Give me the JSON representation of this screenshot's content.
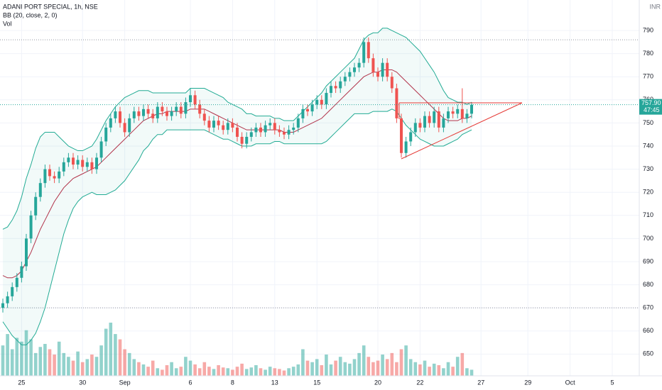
{
  "chart_data": {
    "type": "candlestick",
    "title": "ADANI PORT SPECIAL, 1h, NSE",
    "indicator": "BB (20, close, 2, 0)",
    "volume_label": "Vol",
    "currency": "INR",
    "last_price_label": "757.90",
    "countdown": "47:45",
    "up_color": "#26a69a",
    "down_color": "#ef5350",
    "band_color": "#22ab94",
    "basis_color": "#b2344b",
    "ylim": [
      640.6,
      803.2
    ],
    "yticks": [
      650,
      660,
      670,
      680,
      690,
      700,
      710,
      720,
      730,
      740,
      750,
      760,
      770,
      780,
      790
    ],
    "grid": true,
    "price_lines": [
      786,
      670
    ],
    "categories": [
      null,
      null,
      null,
      null,
      "25",
      null,
      null,
      null,
      null,
      null,
      null,
      null,
      null,
      null,
      null,
      null,
      null,
      "30",
      null,
      null,
      null,
      null,
      null,
      null,
      null,
      null,
      "Sep",
      null,
      null,
      null,
      null,
      null,
      null,
      null,
      null,
      null,
      null,
      null,
      null,
      null,
      "6",
      null,
      null,
      null,
      null,
      null,
      null,
      null,
      null,
      "8",
      null,
      null,
      null,
      null,
      null,
      null,
      null,
      null,
      "13",
      null,
      null,
      null,
      null,
      null,
      null,
      null,
      null,
      "15",
      null,
      null,
      null,
      null,
      null,
      null,
      null,
      null,
      null,
      null,
      null,
      null,
      "20",
      null,
      null,
      null,
      null,
      null,
      null,
      null,
      null,
      "22",
      null,
      null,
      null,
      null,
      null,
      null,
      null,
      null,
      null,
      null,
      null,
      null,
      "27",
      null,
      null,
      null,
      null,
      null,
      null,
      null,
      null,
      null,
      "29",
      null,
      null,
      null,
      null,
      null,
      null,
      null,
      null,
      "Oct",
      null,
      null,
      null,
      null,
      null,
      null,
      null,
      null,
      "5"
    ],
    "open": [
      670,
      672,
      675,
      679,
      683,
      688,
      700,
      710,
      718,
      724,
      730,
      727,
      726,
      729,
      733,
      735,
      732,
      734,
      731,
      733,
      730,
      735,
      742,
      748,
      752,
      755,
      750,
      746,
      752,
      755,
      753,
      756,
      754,
      752,
      757,
      755,
      753,
      755,
      757,
      754,
      759,
      762,
      758,
      754,
      751,
      748,
      751,
      749,
      747,
      750,
      748,
      744,
      741,
      744,
      746,
      748,
      746,
      749,
      750,
      747,
      746,
      745,
      747,
      748,
      752,
      756,
      755,
      758,
      760,
      758,
      763,
      766,
      765,
      768,
      770,
      772,
      774,
      776,
      785,
      778,
      772,
      770,
      776,
      770,
      765,
      752,
      737,
      742,
      746,
      750,
      748,
      753,
      750,
      755,
      748,
      752,
      755,
      754,
      756,
      752,
      754,
      null,
      null,
      null,
      null,
      null,
      null,
      null,
      null,
      null,
      null,
      null,
      null,
      null,
      null,
      null,
      null,
      null,
      null,
      null,
      null,
      null,
      null,
      null,
      null,
      null,
      null,
      null,
      null,
      null,
      null
    ],
    "high": [
      674,
      677,
      681,
      685,
      690,
      702,
      712,
      720,
      726,
      732,
      732,
      729,
      731,
      735,
      737,
      737,
      736,
      736,
      735,
      735,
      737,
      744,
      750,
      754,
      757,
      757,
      752,
      754,
      757,
      757,
      758,
      758,
      756,
      759,
      759,
      757,
      757,
      759,
      759,
      761,
      765,
      764,
      760,
      756,
      753,
      753,
      753,
      751,
      752,
      752,
      750,
      746,
      746,
      748,
      750,
      750,
      751,
      752,
      752,
      749,
      748,
      749,
      750,
      754,
      758,
      758,
      760,
      762,
      762,
      765,
      768,
      768,
      770,
      772,
      774,
      776,
      778,
      787,
      787,
      780,
      774,
      778,
      778,
      772,
      767,
      754,
      744,
      748,
      752,
      752,
      755,
      755,
      757,
      757,
      754,
      757,
      757,
      758,
      765,
      756,
      759,
      null,
      null,
      null,
      null,
      null,
      null,
      null,
      null,
      null,
      null,
      null,
      null,
      null,
      null,
      null,
      null,
      null,
      null,
      null,
      null,
      null,
      null,
      null,
      null,
      null,
      null,
      null,
      null,
      null,
      null
    ],
    "low": [
      668,
      670,
      673,
      677,
      681,
      686,
      698,
      708,
      716,
      722,
      725,
      724,
      724,
      727,
      731,
      730,
      730,
      729,
      729,
      728,
      728,
      733,
      740,
      746,
      750,
      748,
      744,
      744,
      750,
      751,
      751,
      752,
      750,
      750,
      753,
      751,
      751,
      753,
      752,
      752,
      757,
      756,
      752,
      749,
      746,
      746,
      747,
      745,
      745,
      746,
      742,
      739,
      739,
      742,
      744,
      744,
      744,
      747,
      745,
      744,
      743,
      743,
      745,
      746,
      750,
      753,
      753,
      756,
      756,
      756,
      761,
      763,
      763,
      766,
      768,
      770,
      772,
      774,
      776,
      770,
      768,
      768,
      768,
      763,
      750,
      735,
      735,
      740,
      744,
      746,
      746,
      748,
      748,
      746,
      746,
      750,
      752,
      752,
      750,
      750,
      752,
      null,
      null,
      null,
      null,
      null,
      null,
      null,
      null,
      null,
      null,
      null,
      null,
      null,
      null,
      null,
      null,
      null,
      null,
      null,
      null,
      null,
      null,
      null,
      null,
      null,
      null,
      null,
      null,
      null,
      null
    ],
    "close": [
      672,
      675,
      679,
      683,
      688,
      700,
      710,
      718,
      724,
      730,
      727,
      726,
      729,
      733,
      735,
      732,
      734,
      731,
      733,
      730,
      735,
      742,
      748,
      752,
      755,
      750,
      746,
      752,
      755,
      753,
      756,
      754,
      752,
      757,
      755,
      753,
      755,
      757,
      754,
      759,
      762,
      758,
      754,
      751,
      748,
      751,
      749,
      747,
      750,
      748,
      744,
      741,
      744,
      746,
      748,
      746,
      749,
      750,
      747,
      746,
      745,
      747,
      748,
      752,
      756,
      755,
      758,
      760,
      758,
      763,
      766,
      765,
      768,
      770,
      772,
      774,
      776,
      785,
      778,
      772,
      770,
      776,
      770,
      765,
      752,
      737,
      742,
      746,
      750,
      748,
      753,
      750,
      755,
      748,
      752,
      755,
      754,
      756,
      752,
      754,
      757.9,
      null,
      null,
      null,
      null,
      null,
      null,
      null,
      null,
      null,
      null,
      null,
      null,
      null,
      null,
      null,
      null,
      null,
      null,
      null,
      null,
      null,
      null,
      null,
      null,
      null,
      null,
      null,
      null,
      null,
      null
    ],
    "volume": [
      40,
      55,
      35,
      50,
      45,
      60,
      48,
      30,
      38,
      42,
      35,
      28,
      45,
      30,
      25,
      20,
      32,
      18,
      22,
      28,
      25,
      40,
      62,
      70,
      55,
      48,
      35,
      30,
      22,
      18,
      15,
      12,
      20,
      10,
      8,
      14,
      18,
      10,
      12,
      25,
      20,
      15,
      10,
      18,
      12,
      9,
      14,
      11,
      10,
      8,
      12,
      16,
      9,
      11,
      14,
      10,
      8,
      12,
      10,
      9,
      7,
      10,
      12,
      15,
      35,
      20,
      18,
      22,
      14,
      28,
      15,
      20,
      25,
      18,
      16,
      22,
      30,
      40,
      25,
      18,
      20,
      28,
      22,
      30,
      18,
      35,
      40,
      22,
      18,
      15,
      20,
      12,
      16,
      14,
      10,
      18,
      12,
      25,
      30,
      10,
      8,
      null,
      null,
      null,
      null,
      null,
      null,
      null,
      null,
      null,
      null,
      null,
      null,
      null,
      null,
      null,
      null,
      null,
      null,
      null,
      null,
      null,
      null,
      null,
      null,
      null,
      null,
      null,
      null,
      null,
      null
    ],
    "bb_upper": [
      704,
      705,
      708,
      712,
      718,
      726,
      732,
      739,
      744,
      746,
      746,
      746,
      744,
      742,
      740,
      739,
      738,
      738,
      739,
      740,
      743,
      747,
      751,
      754,
      757,
      759,
      761,
      762,
      763,
      764,
      764,
      764,
      763,
      763,
      763,
      763,
      763,
      763,
      763,
      763,
      765,
      765,
      765,
      765,
      764,
      763,
      762,
      761,
      759,
      758,
      757,
      756,
      754,
      754,
      753,
      753,
      753,
      753,
      752,
      752,
      751,
      751,
      751,
      753,
      755,
      757,
      759,
      761,
      763,
      766,
      768,
      770,
      772,
      774,
      776,
      778,
      782,
      786,
      788,
      789,
      789,
      791,
      791,
      790,
      789,
      788,
      787,
      785,
      783,
      781,
      778,
      775,
      772,
      768,
      764,
      761,
      760,
      759,
      759,
      758,
      759,
      null,
      null,
      null,
      null,
      null,
      null,
      null,
      null,
      null,
      null,
      null,
      null,
      null,
      null,
      null,
      null,
      null,
      null,
      null,
      null,
      null,
      null,
      null,
      null,
      null,
      null,
      null,
      null,
      null,
      null
    ],
    "bb_basis": [
      684,
      683,
      683,
      684,
      686,
      690,
      694,
      699,
      704,
      708,
      712,
      716,
      719,
      722,
      724,
      726,
      727,
      728,
      729,
      730,
      731,
      733,
      735,
      737,
      739,
      741,
      743,
      745,
      747,
      749,
      751,
      752,
      753,
      754,
      754,
      755,
      755,
      755,
      755,
      755,
      756,
      756,
      756,
      756,
      755,
      754,
      753,
      752,
      751,
      750,
      749,
      748,
      747,
      747,
      747,
      747,
      747,
      747,
      747,
      747,
      746,
      746,
      746,
      747,
      748,
      749,
      750,
      751,
      752,
      754,
      756,
      758,
      760,
      762,
      764,
      766,
      768,
      770,
      771,
      772,
      772,
      773,
      773,
      773,
      772,
      770,
      768,
      766,
      764,
      762,
      760,
      758,
      756,
      754,
      752,
      751,
      751,
      751,
      752,
      752,
      753,
      null,
      null,
      null,
      null,
      null,
      null,
      null,
      null,
      null,
      null,
      null,
      null,
      null,
      null,
      null,
      null,
      null,
      null,
      null,
      null,
      null,
      null,
      null,
      null,
      null,
      null,
      null,
      null,
      null,
      null
    ],
    "bb_lower": [
      664,
      661,
      658,
      656,
      654,
      654,
      656,
      659,
      664,
      670,
      678,
      686,
      694,
      702,
      708,
      713,
      716,
      718,
      719,
      720,
      719,
      719,
      719,
      720,
      721,
      723,
      725,
      728,
      731,
      734,
      738,
      740,
      743,
      745,
      745,
      747,
      747,
      747,
      747,
      747,
      747,
      747,
      747,
      747,
      746,
      745,
      744,
      743,
      743,
      742,
      741,
      740,
      740,
      740,
      741,
      741,
      741,
      741,
      742,
      742,
      741,
      741,
      741,
      741,
      741,
      741,
      741,
      741,
      741,
      742,
      744,
      746,
      748,
      750,
      752,
      754,
      754,
      754,
      754,
      755,
      755,
      755,
      755,
      756,
      755,
      752,
      749,
      747,
      745,
      743,
      742,
      741,
      740,
      740,
      740,
      741,
      742,
      743,
      745,
      746,
      747,
      null,
      null,
      null,
      null,
      null,
      null,
      null,
      null,
      null,
      null,
      null,
      null,
      null,
      null,
      null,
      null,
      null,
      null,
      null,
      null,
      null,
      null,
      null,
      null,
      null,
      null,
      null,
      null,
      null,
      null
    ]
  }
}
